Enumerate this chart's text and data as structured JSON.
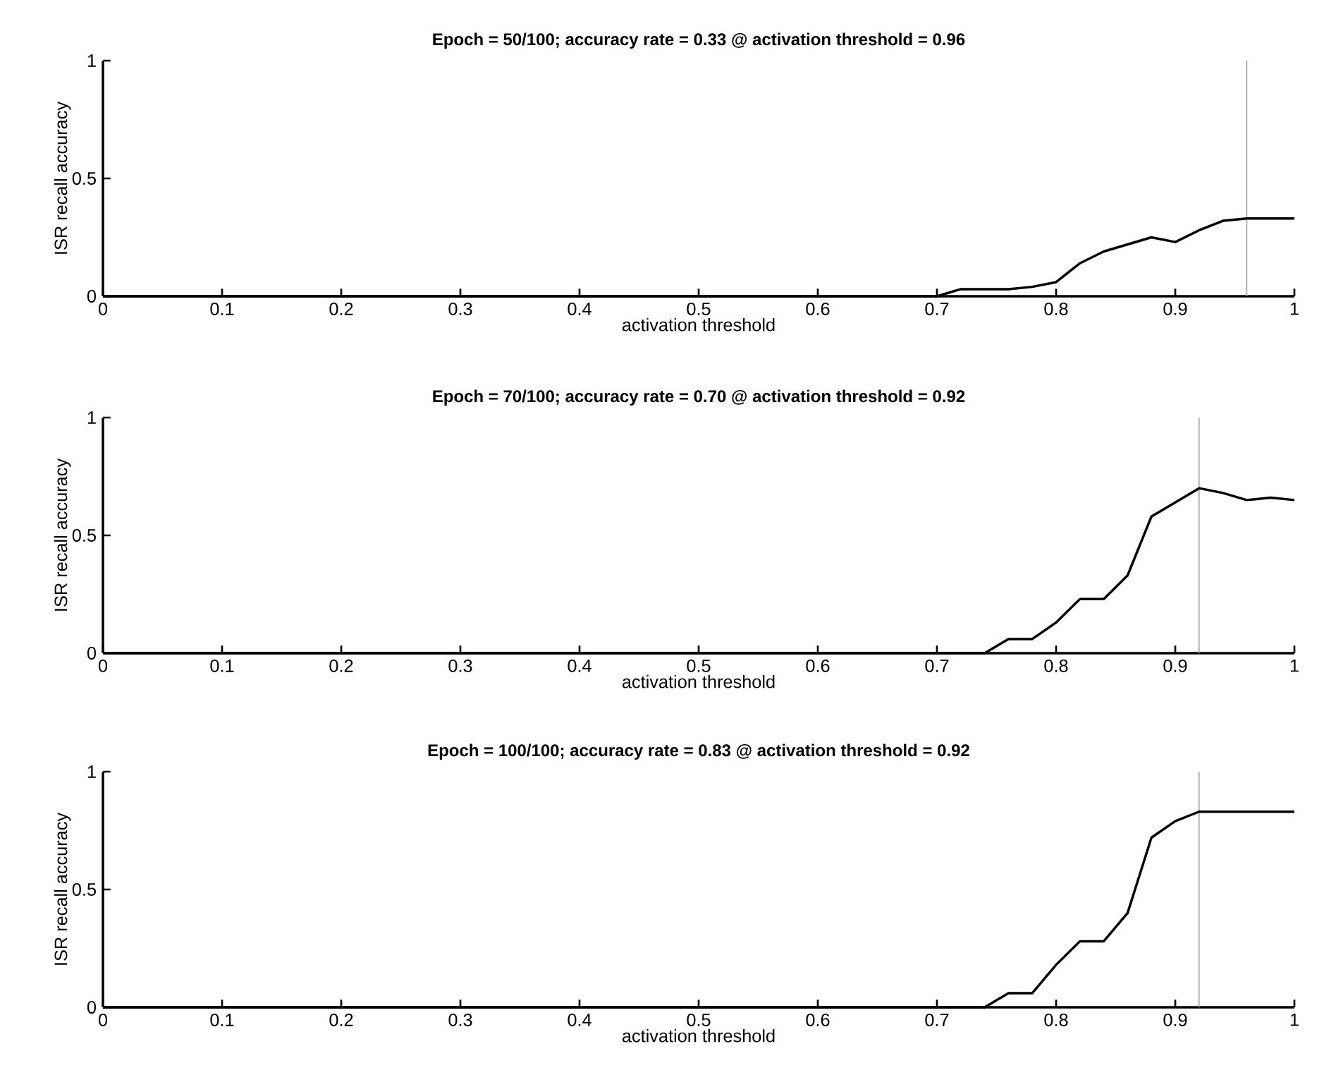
{
  "chart_data": [
    {
      "type": "line",
      "title": "Epoch = 50/100; accuracy rate = 0.33 @ activation threshold = 0.96",
      "xlabel": "activation threshold",
      "ylabel": "ISR recall accuracy",
      "color": "#000000",
      "x": [
        0,
        0.7,
        0.72,
        0.74,
        0.76,
        0.78,
        0.8,
        0.82,
        0.84,
        0.86,
        0.88,
        0.9,
        0.92,
        0.94,
        0.96,
        0.98,
        1.0
      ],
      "values": [
        0,
        0,
        0.03,
        0.03,
        0.03,
        0.04,
        0.06,
        0.14,
        0.19,
        0.22,
        0.25,
        0.23,
        0.28,
        0.32,
        0.33,
        0.33,
        0.33
      ],
      "xlim": [
        0,
        1
      ],
      "ylim": [
        0,
        1
      ],
      "xticks": [
        0,
        0.1,
        0.2,
        0.3,
        0.4,
        0.5,
        0.6,
        0.7,
        0.8,
        0.9,
        1
      ],
      "yticks": [
        0,
        0.5,
        1
      ],
      "ref_lines": [
        {
          "axis": "x",
          "value": 0.96,
          "color": "#a0a0a0"
        }
      ]
    },
    {
      "type": "line",
      "title": "Epoch = 70/100; accuracy rate = 0.70 @ activation threshold = 0.92",
      "xlabel": "activation threshold",
      "ylabel": "ISR recall accuracy",
      "color": "#000000",
      "x": [
        0,
        0.7,
        0.72,
        0.74,
        0.76,
        0.78,
        0.8,
        0.82,
        0.84,
        0.86,
        0.88,
        0.9,
        0.92,
        0.94,
        0.96,
        0.98,
        1.0
      ],
      "values": [
        0,
        0,
        0,
        0,
        0.06,
        0.06,
        0.13,
        0.23,
        0.23,
        0.33,
        0.58,
        0.64,
        0.7,
        0.68,
        0.65,
        0.66,
        0.65
      ],
      "xlim": [
        0,
        1
      ],
      "ylim": [
        0,
        1
      ],
      "xticks": [
        0,
        0.1,
        0.2,
        0.3,
        0.4,
        0.5,
        0.6,
        0.7,
        0.8,
        0.9,
        1
      ],
      "yticks": [
        0,
        0.5,
        1
      ],
      "ref_lines": [
        {
          "axis": "x",
          "value": 0.92,
          "color": "#a0a0a0"
        }
      ]
    },
    {
      "type": "line",
      "title": "Epoch = 100/100; accuracy rate = 0.83 @ activation threshold = 0.92",
      "xlabel": "activation threshold",
      "ylabel": "ISR recall accuracy",
      "color": "#000000",
      "x": [
        0,
        0.7,
        0.72,
        0.74,
        0.76,
        0.78,
        0.8,
        0.82,
        0.84,
        0.86,
        0.88,
        0.9,
        0.92,
        0.94,
        0.96,
        0.98,
        1.0
      ],
      "values": [
        0,
        0,
        0,
        0,
        0.06,
        0.06,
        0.18,
        0.28,
        0.28,
        0.4,
        0.72,
        0.79,
        0.83,
        0.83,
        0.83,
        0.83,
        0.83
      ],
      "xlim": [
        0,
        1
      ],
      "ylim": [
        0,
        1
      ],
      "xticks": [
        0,
        0.1,
        0.2,
        0.3,
        0.4,
        0.5,
        0.6,
        0.7,
        0.8,
        0.9,
        1
      ],
      "yticks": [
        0,
        0.5,
        1
      ],
      "ref_lines": [
        {
          "axis": "x",
          "value": 0.92,
          "color": "#a0a0a0"
        }
      ]
    }
  ]
}
